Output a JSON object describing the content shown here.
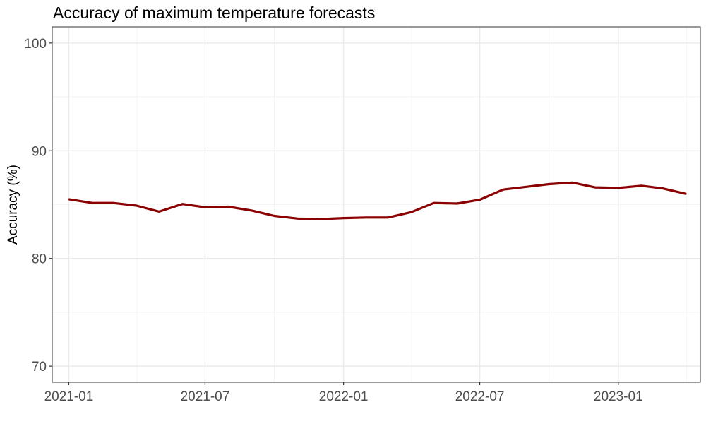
{
  "chart_data": {
    "type": "line",
    "title": "Accuracy of maximum temperature forecasts",
    "xlabel": "",
    "ylabel": "Accuracy (%)",
    "ylim": [
      68.5,
      101.5
    ],
    "xlim": [
      "2020-12-10",
      "2023-04-20"
    ],
    "x_ticks": [
      "2021-01",
      "2021-07",
      "2022-01",
      "2022-07",
      "2023-01"
    ],
    "y_ticks": [
      70,
      80,
      90,
      100
    ],
    "grid": true,
    "legend": "none",
    "line_color": "#8b0000",
    "series": [
      {
        "x": [
          "2021-01",
          "2021-02",
          "2021-03",
          "2021-04",
          "2021-05",
          "2021-06",
          "2021-07",
          "2021-08",
          "2021-09",
          "2021-10",
          "2021-11",
          "2021-12",
          "2022-01",
          "2022-02",
          "2022-03",
          "2022-04",
          "2022-05",
          "2022-06",
          "2022-07",
          "2022-08",
          "2022-09",
          "2022-10",
          "2022-11",
          "2022-12",
          "2023-01",
          "2023-02",
          "2023-03",
          "2023-04"
        ],
        "values": [
          85.5,
          85.15,
          85.15,
          84.9,
          84.35,
          85.05,
          84.75,
          84.8,
          84.45,
          83.95,
          83.7,
          83.65,
          83.75,
          83.8,
          83.8,
          84.3,
          85.15,
          85.1,
          85.45,
          86.4,
          86.65,
          86.9,
          87.05,
          86.6,
          86.55,
          86.75,
          86.5,
          86.0
        ]
      }
    ]
  }
}
